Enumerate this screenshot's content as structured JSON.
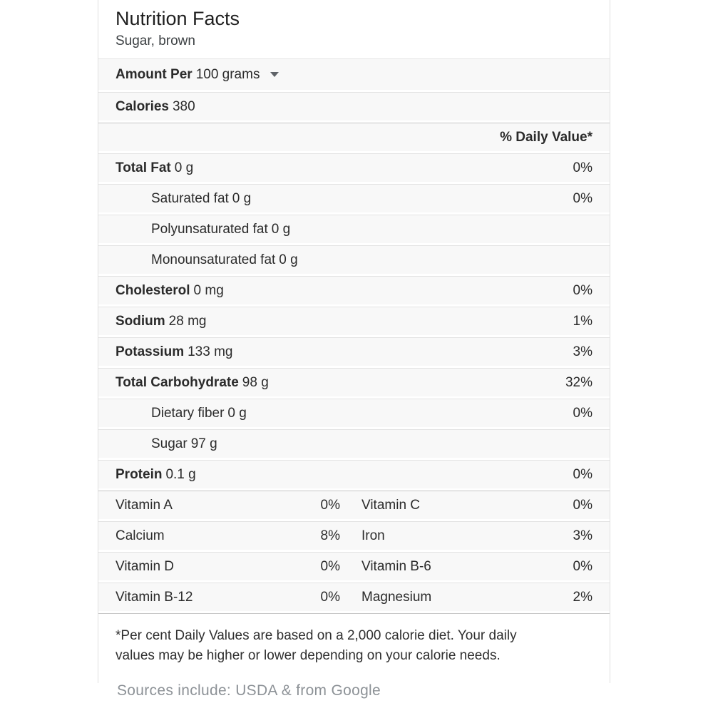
{
  "card": {
    "title": "Nutrition Facts",
    "subtitle": "Sugar, brown",
    "serving": {
      "label": "Amount Per",
      "value": "100 grams"
    },
    "calories": {
      "label": "Calories",
      "value": "380"
    },
    "daily_value_header": "% Daily Value*",
    "nutrients": [
      {
        "label": "Total Fat",
        "amount": "0 g",
        "dv": "0%"
      },
      {
        "label": "Saturated fat",
        "amount": "0 g",
        "dv": "0%"
      },
      {
        "label": "Polyunsaturated fat",
        "amount": "0 g",
        "dv": ""
      },
      {
        "label": "Monounsaturated fat",
        "amount": "0 g",
        "dv": ""
      },
      {
        "label": "Cholesterol",
        "amount": "0 mg",
        "dv": "0%"
      },
      {
        "label": "Sodium",
        "amount": "28 mg",
        "dv": "1%"
      },
      {
        "label": "Potassium",
        "amount": "133 mg",
        "dv": "3%"
      },
      {
        "label": "Total Carbohydrate",
        "amount": "98 g",
        "dv": "32%"
      },
      {
        "label": "Dietary fiber",
        "amount": "0 g",
        "dv": "0%"
      },
      {
        "label": "Sugar",
        "amount": "97 g",
        "dv": ""
      },
      {
        "label": "Protein",
        "amount": "0.1 g",
        "dv": "0%"
      }
    ],
    "micronutrients": [
      {
        "left": {
          "label": "Vitamin A",
          "dv": "0%"
        },
        "right": {
          "label": "Vitamin C",
          "dv": "0%"
        }
      },
      {
        "left": {
          "label": "Calcium",
          "dv": "8%"
        },
        "right": {
          "label": "Iron",
          "dv": "3%"
        }
      },
      {
        "left": {
          "label": "Vitamin D",
          "dv": "0%"
        },
        "right": {
          "label": "Vitamin B-6",
          "dv": "0%"
        }
      },
      {
        "left": {
          "label": "Vitamin B-12",
          "dv": "0%"
        },
        "right": {
          "label": "Magnesium",
          "dv": "2%"
        }
      }
    ],
    "footnote_line1": "*Per cent Daily Values are based on a 2,000 calorie diet. Your daily",
    "footnote_line2": "values may be higher or lower depending on your calorie needs."
  },
  "source_note": "Sources include: USDA & from Google"
}
